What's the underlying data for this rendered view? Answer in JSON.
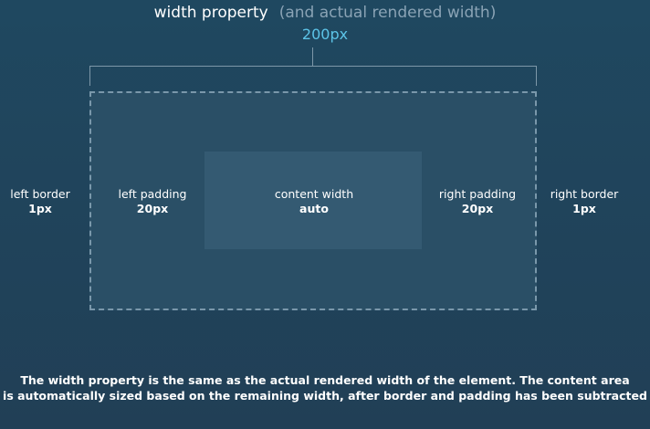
{
  "header": {
    "title": "width property",
    "subtitle": "(and actual rendered width)",
    "value": "200px"
  },
  "labels": {
    "left_border": {
      "name": "left border",
      "value": "1px"
    },
    "left_padding": {
      "name": "left padding",
      "value": "20px"
    },
    "content_width": {
      "name": "content width",
      "value": "auto"
    },
    "right_padding": {
      "name": "right padding",
      "value": "20px"
    },
    "right_border": {
      "name": "right border",
      "value": "1px"
    }
  },
  "caption": {
    "line1": "The width property is the same as the actual rendered width of the element. The content area",
    "line2": "is automatically sized based on the remaining width, after border and padding has been subtracted"
  },
  "colors": {
    "background": "#1f4860",
    "accent": "#5cc4e8",
    "box": "#2a4f66",
    "content": "#345a72",
    "dashed_border": "#7a98ab"
  }
}
